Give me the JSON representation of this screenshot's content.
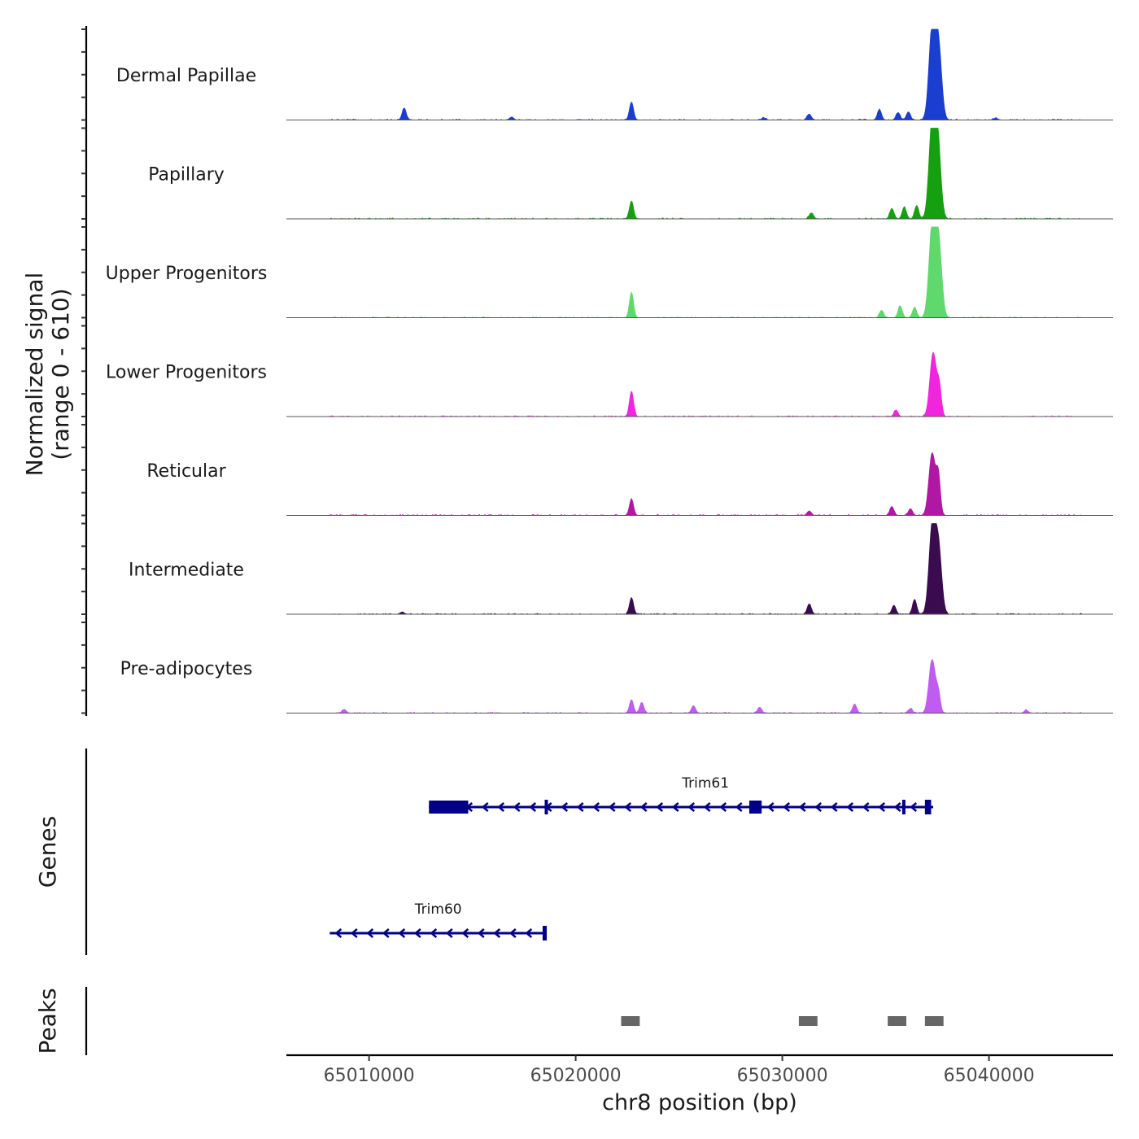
{
  "chart_data": {
    "type": "area",
    "title": "",
    "xlabel": "chr8 position (bp)",
    "ylabel_line1": "Normalized signal",
    "ylabel_line2": "(range 0 - 610)",
    "y_range": [
      0,
      610
    ],
    "xlim": [
      65006000,
      65046000
    ],
    "x_ticks": [
      65010000,
      65020000,
      65030000,
      65040000
    ],
    "x_tick_labels": [
      "65010000",
      "65020000",
      "65030000",
      "65040000"
    ],
    "tracks": [
      {
        "name": "Dermal Papillae",
        "color": "#1a3ecf",
        "peaks": [
          [
            65011700,
            80
          ],
          [
            65016900,
            20
          ],
          [
            65022700,
            120
          ],
          [
            65029100,
            15
          ],
          [
            65031300,
            40
          ],
          [
            65034700,
            70
          ],
          [
            65035600,
            50
          ],
          [
            65036100,
            55
          ],
          [
            65037250,
            610
          ],
          [
            65037550,
            500
          ],
          [
            65040300,
            12
          ]
        ]
      },
      {
        "name": "Papillary",
        "color": "#14a00f",
        "peaks": [
          [
            65022700,
            120
          ],
          [
            65031400,
            40
          ],
          [
            65035300,
            70
          ],
          [
            65035900,
            80
          ],
          [
            65036500,
            90
          ],
          [
            65037250,
            610
          ],
          [
            65037500,
            540
          ]
        ]
      },
      {
        "name": "Upper Progenitors",
        "color": "#5fd86c",
        "peaks": [
          [
            65022700,
            170
          ],
          [
            65034800,
            50
          ],
          [
            65035700,
            80
          ],
          [
            65036400,
            70
          ],
          [
            65037250,
            600
          ],
          [
            65037550,
            520
          ]
        ]
      },
      {
        "name": "Lower Progenitors",
        "color": "#f025de",
        "peaks": [
          [
            65022700,
            170
          ],
          [
            65035500,
            40
          ],
          [
            65037300,
            430
          ],
          [
            65037600,
            180
          ]
        ]
      },
      {
        "name": "Reticular",
        "color": "#b017a5",
        "peaks": [
          [
            65022700,
            110
          ],
          [
            65031300,
            30
          ],
          [
            65035300,
            60
          ],
          [
            65036200,
            45
          ],
          [
            65037250,
            420
          ],
          [
            65037550,
            250
          ]
        ]
      },
      {
        "name": "Intermediate",
        "color": "#3b0b4f",
        "peaks": [
          [
            65011600,
            15
          ],
          [
            65022700,
            110
          ],
          [
            65031300,
            70
          ],
          [
            65035400,
            60
          ],
          [
            65036400,
            100
          ],
          [
            65037250,
            570
          ],
          [
            65037550,
            450
          ]
        ]
      },
      {
        "name": "Pre-adipocytes",
        "color": "#c05cf0",
        "peaks": [
          [
            65008800,
            25
          ],
          [
            65022700,
            90
          ],
          [
            65023200,
            70
          ],
          [
            65025700,
            50
          ],
          [
            65028900,
            40
          ],
          [
            65033500,
            60
          ],
          [
            65036200,
            30
          ],
          [
            65037250,
            360
          ],
          [
            65037550,
            120
          ],
          [
            65041800,
            20
          ]
        ]
      }
    ],
    "genes": [
      {
        "name": "Trim61",
        "start": 65012900,
        "end": 65037300,
        "strand": "-",
        "exons": [
          [
            65012900,
            65014800
          ],
          [
            65018500,
            65018650
          ],
          [
            65028400,
            65029000
          ],
          [
            65035800,
            65035900
          ],
          [
            65036900,
            65037200
          ]
        ]
      },
      {
        "name": "Trim60",
        "start": 65008100,
        "end": 65018600,
        "strand": "-",
        "exons": [
          [
            65018400,
            65018600
          ]
        ]
      }
    ],
    "peaks_track": [
      [
        65022200,
        65023100
      ],
      [
        65030800,
        65031700
      ],
      [
        65035100,
        65036000
      ],
      [
        65036900,
        65037800
      ]
    ],
    "panel_labels": {
      "genes": "Genes",
      "peaks": "Peaks"
    }
  }
}
